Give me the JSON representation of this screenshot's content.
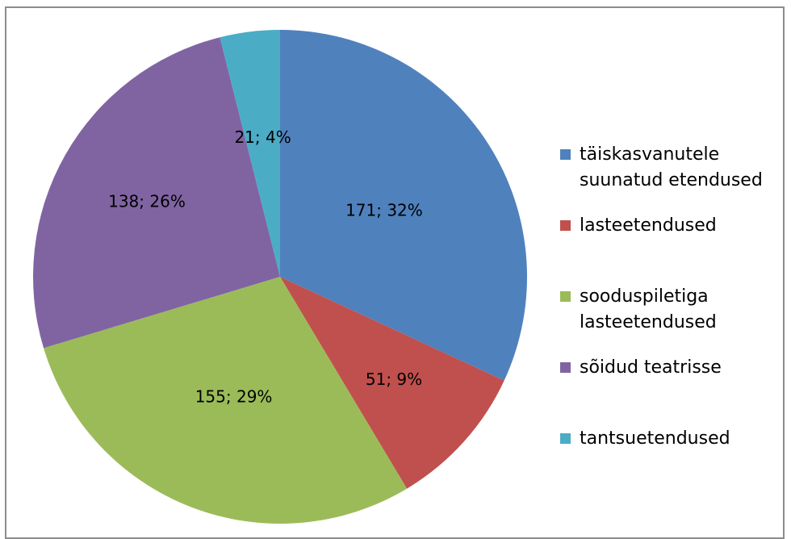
{
  "chart_data": {
    "type": "pie",
    "slices": [
      {
        "name": "täiskasvanutele suunatud etendused",
        "value": 171,
        "percent": "32%",
        "label": "171; 32%",
        "color": "#4f81bd"
      },
      {
        "name": "lasteetendused",
        "value": 51,
        "percent": "9%",
        "label": "51; 9%",
        "color": "#c0504d"
      },
      {
        "name": "sooduspiletiga lasteetendused",
        "value": 155,
        "percent": "29%",
        "label": "155; 29%",
        "color": "#9bbb59"
      },
      {
        "name": "sõidud teatrisse",
        "value": 138,
        "percent": "26%",
        "label": "138; 26%",
        "color": "#8064a2"
      },
      {
        "name": "tantsuetendused",
        "value": 21,
        "percent": "4%",
        "label": "21; 4%",
        "color": "#4bacc6"
      }
    ],
    "legend_placement": "right",
    "start_angle": "12 o'clock, clockwise"
  }
}
